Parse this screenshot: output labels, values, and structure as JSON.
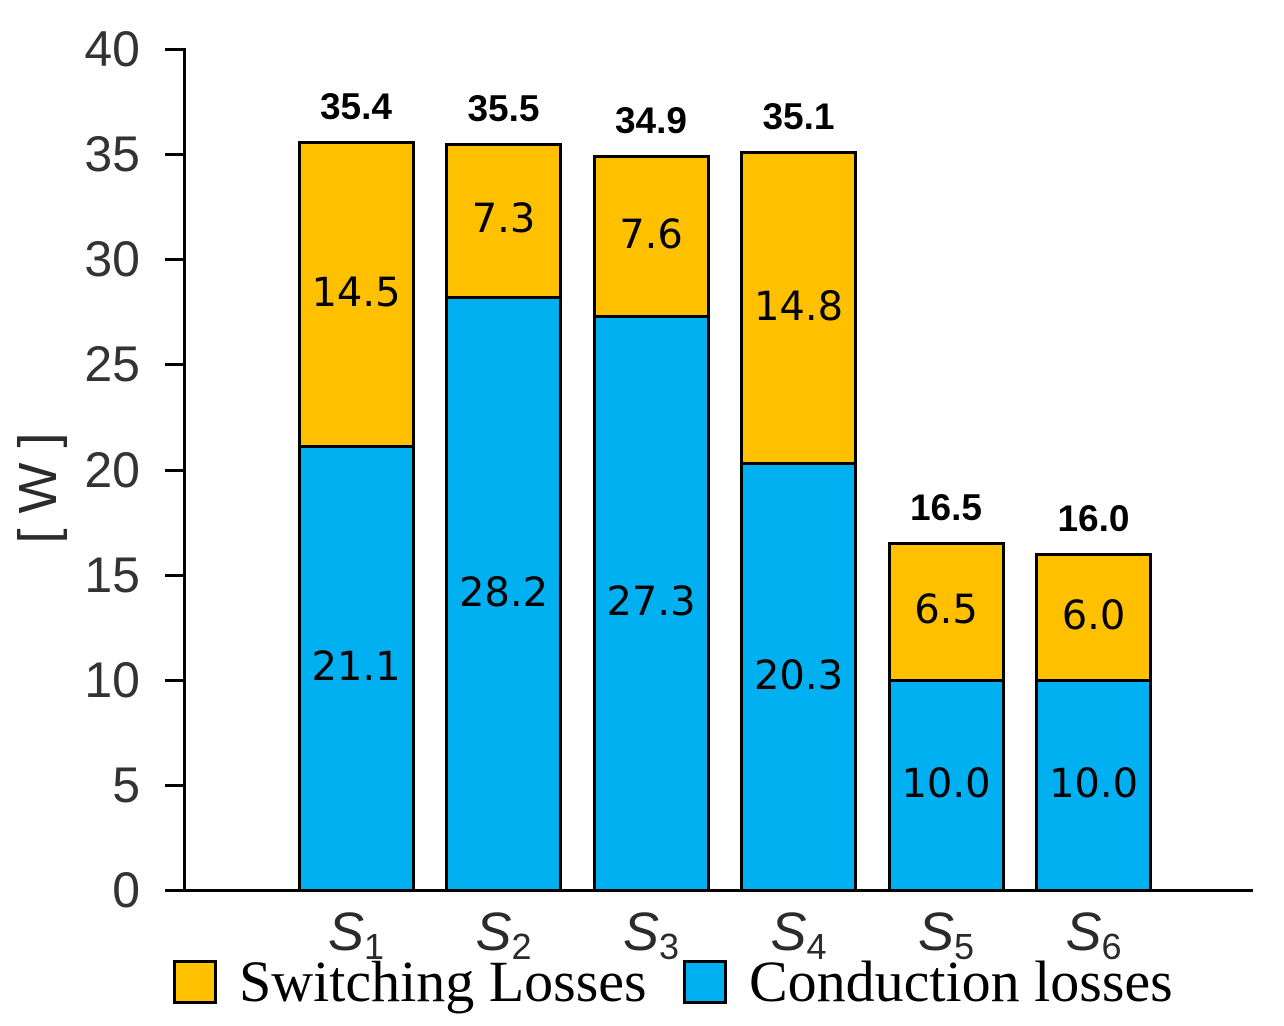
{
  "chart_data": {
    "type": "bar",
    "stacked": true,
    "title": "",
    "xlabel": "",
    "ylabel": "[ W ]",
    "unit": "W",
    "ylim": [
      0,
      40
    ],
    "yticks": [
      0,
      5,
      10,
      15,
      20,
      25,
      30,
      35,
      40
    ],
    "grid": false,
    "legend_position": "bottom",
    "categories": [
      {
        "name": "S1",
        "base": "S",
        "sub": "1"
      },
      {
        "name": "S2",
        "base": "S",
        "sub": "2"
      },
      {
        "name": "S3",
        "base": "S",
        "sub": "3"
      },
      {
        "name": "S4",
        "base": "S",
        "sub": "4"
      },
      {
        "name": "S5",
        "base": "S",
        "sub": "5"
      },
      {
        "name": "S6",
        "base": "S",
        "sub": "6"
      }
    ],
    "series": [
      {
        "name": "Conduction losses",
        "color": "#00B0F0",
        "values": [
          21.1,
          28.2,
          27.3,
          20.3,
          10.0,
          10.0
        ],
        "labels": [
          "21.1",
          "28.2",
          "27.3",
          "20.3",
          "10.0",
          "10.0"
        ]
      },
      {
        "name": "Switching Losses",
        "color": "#FFC000",
        "values": [
          14.5,
          7.3,
          7.6,
          14.8,
          6.5,
          6.0
        ],
        "labels": [
          "14.5",
          "7.3",
          "7.6",
          "14.8",
          "6.5",
          "6.0"
        ]
      }
    ],
    "totals": {
      "values": [
        35.4,
        35.5,
        34.9,
        35.1,
        16.5,
        16.0
      ],
      "labels": [
        "35.4",
        "35.5",
        "34.9",
        "35.1",
        "16.5",
        "16.0"
      ]
    },
    "legend": [
      {
        "label": "Switching Losses",
        "color": "#FFC000"
      },
      {
        "label": "Conduction losses",
        "color": "#00B0F0"
      }
    ],
    "colors": {
      "switching": "#FFC000",
      "conduction": "#00B0F0",
      "axis": "#000000",
      "tick_label": "#333333",
      "text": "#000000",
      "background": "#FFFFFF"
    }
  }
}
